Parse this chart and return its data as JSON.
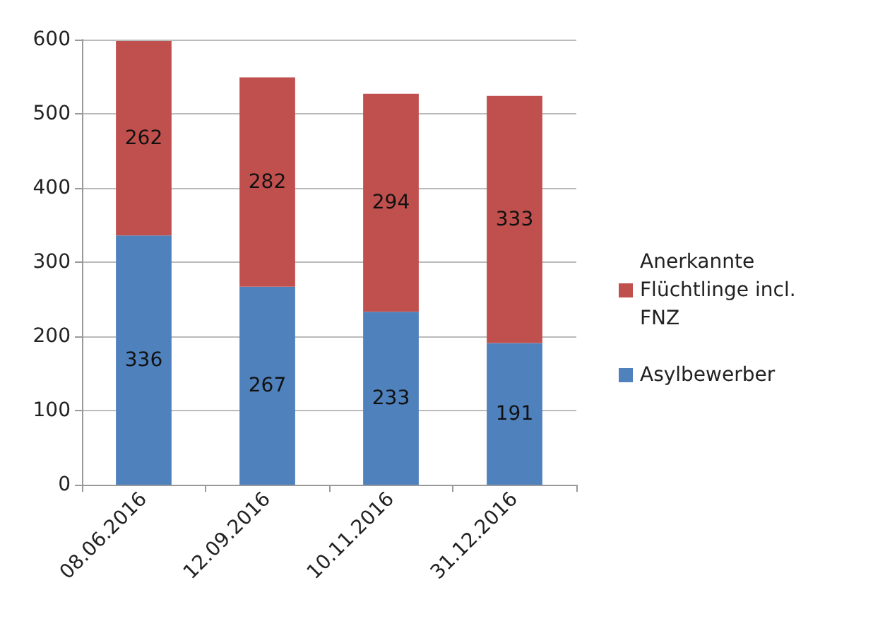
{
  "chart_data": {
    "type": "bar",
    "stacked": true,
    "categories": [
      "08.06.2016",
      "12.09.2016",
      "10.11.2016",
      "31.12.2016"
    ],
    "series": [
      {
        "name": "Asylbewerber",
        "color": "#4f81bd",
        "values": [
          336,
          267,
          233,
          191
        ]
      },
      {
        "name": "Anerkannte Flüchtlinge incl. FNZ",
        "color": "#c0504d",
        "values": [
          262,
          282,
          294,
          333
        ]
      }
    ],
    "ylim": [
      0,
      600
    ],
    "yticks": [
      0,
      100,
      200,
      300,
      400,
      500,
      600
    ],
    "grid": "y",
    "legend": "right",
    "data_labels": true
  }
}
